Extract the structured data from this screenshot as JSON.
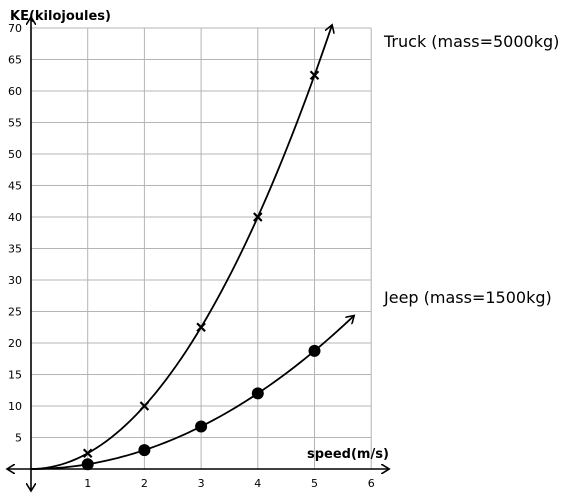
{
  "chart_data": {
    "type": "line",
    "title": "",
    "xlabel": "speed(m/s)",
    "ylabel": "KE(kilojoules)",
    "xlim": [
      0,
      6
    ],
    "ylim": [
      0,
      70
    ],
    "x_ticks": [
      "1",
      "2",
      "3",
      "4",
      "5",
      "6"
    ],
    "y_ticks": [
      "5",
      "10",
      "15",
      "20",
      "25",
      "30",
      "35",
      "40",
      "45",
      "50",
      "55",
      "60",
      "65",
      "70"
    ],
    "grid": true,
    "series": [
      {
        "name": "Truck (mass=5000kg)",
        "marker": "x",
        "x": [
          1,
          2,
          3,
          4,
          5
        ],
        "y": [
          2.5,
          10,
          22.5,
          40,
          62.5
        ]
      },
      {
        "name": "Jeep (mass=1500kg)",
        "marker": "circle",
        "x": [
          1,
          2,
          3,
          4,
          5
        ],
        "y": [
          0.75,
          3,
          6.75,
          12,
          18.75
        ]
      }
    ]
  }
}
